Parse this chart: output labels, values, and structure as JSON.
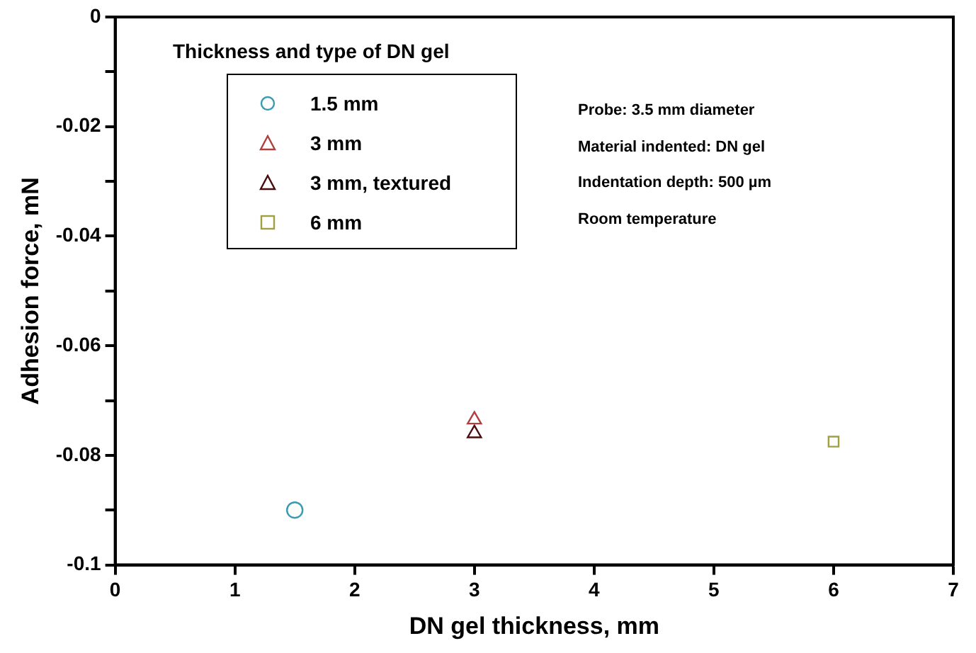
{
  "chart_data": {
    "type": "scatter",
    "xlabel": "DN gel thickness, mm",
    "ylabel": "Adhesion force, mN",
    "legend_title": "Thickness and type of DN gel",
    "xlim": [
      0,
      7
    ],
    "xticks": [
      0,
      1,
      2,
      3,
      4,
      5,
      6,
      7
    ],
    "ylim": [
      -0.1,
      0
    ],
    "yticks": [
      -0.1,
      {
        "value": -0.09,
        "label": null
      },
      -0.08,
      {
        "value": -0.07,
        "label": null
      },
      -0.06,
      {
        "value": -0.05,
        "label": null
      },
      -0.04,
      {
        "value": -0.03,
        "label": null
      },
      -0.02,
      {
        "value": -0.01,
        "label": null
      },
      0
    ],
    "grid": false,
    "legend": "top left",
    "annotations": [
      "Probe: 3.5 mm diameter",
      "Material indented: DN gel",
      "Indentation depth: 500 µm",
      "Room  temperature"
    ],
    "series": [
      {
        "name": "1.5 mm",
        "color": "#3a9ab0",
        "marker": "circle",
        "x": [
          1.5
        ],
        "values": [
          -0.09
        ]
      },
      {
        "name": "3 mm",
        "color": "#b04040",
        "marker": "triangle",
        "x": [
          3
        ],
        "values": [
          -0.0735
        ]
      },
      {
        "name": "3 mm, textured",
        "color": "#4a0d0d",
        "marker": "triangle",
        "x": [
          3
        ],
        "values": [
          -0.076
        ]
      },
      {
        "name": "6 mm",
        "color": "#a0a040",
        "marker": "square",
        "x": [
          6
        ],
        "values": [
          -0.0775
        ]
      }
    ]
  }
}
